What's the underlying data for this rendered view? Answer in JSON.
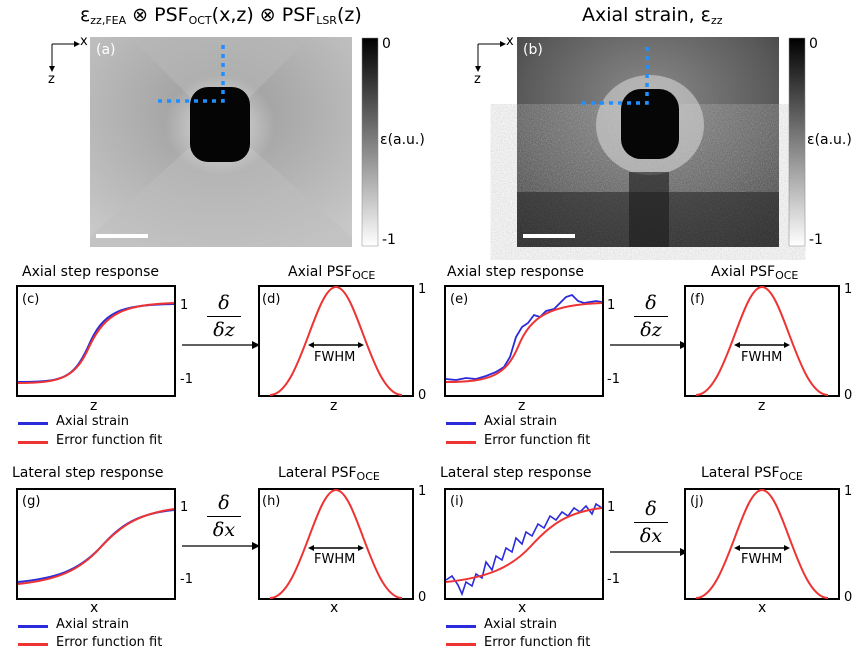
{
  "top": {
    "left_title": {
      "prefix": "ε",
      "prefix_sub": "zz,FEA",
      "mid1": " ⊗ PSF",
      "mid1_sub": "OCT",
      "mid2": "(x,z) ⊗ PSF",
      "mid2_sub": "LSR",
      "end": "(z)"
    },
    "right_title": {
      "main": "Axial strain, ε",
      "sub": "zz"
    },
    "panel_a": "(a)",
    "panel_b": "(b)",
    "axis_x": "x",
    "axis_z": "z",
    "cbar_top": "0",
    "cbar_bottom": "-1",
    "cbar_label": "ε(a.u.)"
  },
  "panels": {
    "c": {
      "letter": "(c)",
      "title": "Axial step response",
      "xlabel": "z",
      "tick_top": "1",
      "tick_bottom": "-1"
    },
    "d": {
      "letter": "(d)",
      "title": "Axial PSF",
      "title_sub": "OCE",
      "xlabel": "z",
      "tick_top": "1",
      "tick_bottom": "0",
      "fwhm": "FWHM"
    },
    "e": {
      "letter": "(e)",
      "title": "Axial step response",
      "xlabel": "z",
      "tick_top": "1",
      "tick_bottom": "-1"
    },
    "f": {
      "letter": "(f)",
      "title": "Axial PSF",
      "title_sub": "OCE",
      "xlabel": "z",
      "tick_top": "1",
      "tick_bottom": "0",
      "fwhm": "FWHM"
    },
    "g": {
      "letter": "(g)",
      "title": "Lateral step response",
      "xlabel": "x",
      "tick_top": "1",
      "tick_bottom": "-1"
    },
    "h": {
      "letter": "(h)",
      "title": "Lateral PSF",
      "title_sub": "OCE",
      "xlabel": "x",
      "tick_top": "1",
      "tick_bottom": "0",
      "fwhm": "FWHM"
    },
    "i": {
      "letter": "(i)",
      "title": "Lateral step response",
      "xlabel": "x",
      "tick_top": "1",
      "tick_bottom": "-1"
    },
    "j": {
      "letter": "(j)",
      "title": "Lateral PSF",
      "title_sub": "OCE",
      "xlabel": "x",
      "tick_top": "1",
      "tick_bottom": "0",
      "fwhm": "FWHM"
    }
  },
  "derivatives": {
    "axial": {
      "num": "δ",
      "den": "δz"
    },
    "lateral": {
      "num": "δ",
      "den": "δx"
    }
  },
  "legend": {
    "series1": "Axial strain",
    "series2": "Error function fit"
  },
  "colors": {
    "strain": "#2b2bdc",
    "fit": "#ee3333",
    "marker": "#1e90ff"
  }
}
